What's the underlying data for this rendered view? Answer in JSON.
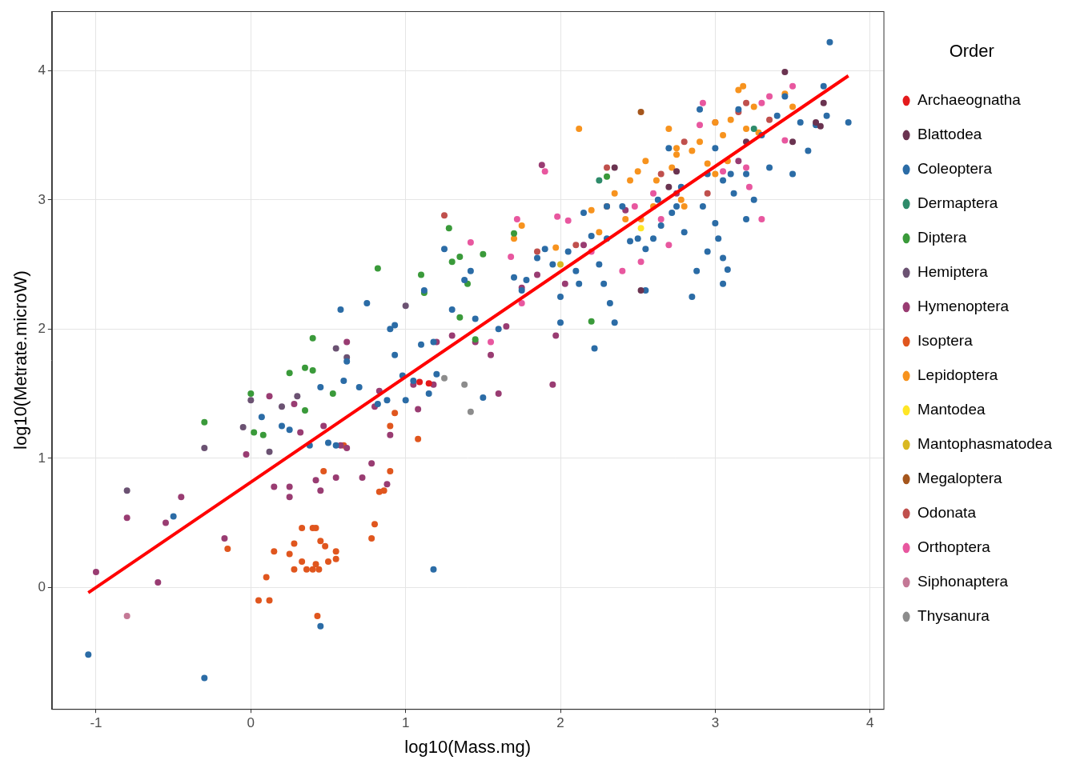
{
  "chart_data": {
    "type": "scatter",
    "x_label": "log10(Mass.mg)",
    "y_label": "log10(Metrate.microW)",
    "legend_title": "Order",
    "legend": "right",
    "grid": true,
    "marker": "circle",
    "xlim": [
      -1.285,
      4.087
    ],
    "ylim": [
      -0.94,
      4.46
    ],
    "xticks": [
      -1,
      0,
      1,
      2,
      3,
      4
    ],
    "yticks": [
      0,
      1,
      2,
      3,
      4
    ],
    "trend_line": {
      "color": "#ff0000",
      "line_style": "solid",
      "x": [
        -1.05,
        3.86
      ],
      "y": [
        -0.04,
        3.96
      ]
    },
    "series": [
      {
        "name": "Archaeognatha",
        "color": "#e41a1c",
        "x": [
          1.09,
          1.15
        ],
        "y": [
          1.59,
          1.58
        ]
      },
      {
        "name": "Blattodea",
        "color": "#6a3350",
        "x": [
          2.52,
          3.45,
          3.5,
          3.65,
          3.7,
          3.68,
          2.75,
          2.7,
          3.2,
          2.35
        ],
        "y": [
          2.3,
          3.99,
          3.45,
          3.6,
          3.75,
          3.57,
          3.22,
          3.1,
          3.45,
          3.25
        ]
      },
      {
        "name": "Coleoptera",
        "color": "#2b6ca6",
        "x": [
          -1.05,
          -0.3,
          -0.5,
          0.45,
          1.18,
          0.07,
          0.2,
          0.25,
          0.38,
          0.45,
          0.5,
          0.55,
          0.58,
          0.6,
          0.62,
          0.7,
          0.75,
          0.82,
          0.88,
          0.9,
          0.93,
          0.93,
          0.98,
          1.0,
          1.05,
          1.1,
          1.12,
          1.15,
          1.18,
          1.2,
          1.25,
          1.3,
          1.38,
          1.42,
          1.45,
          1.5,
          1.6,
          1.7,
          1.75,
          1.78,
          1.85,
          1.9,
          1.95,
          2.0,
          2.0,
          2.05,
          2.1,
          2.12,
          2.15,
          2.2,
          2.22,
          2.25,
          2.28,
          2.3,
          2.3,
          2.32,
          2.35,
          2.4,
          2.45,
          2.5,
          2.55,
          2.55,
          2.6,
          2.63,
          2.65,
          2.7,
          2.72,
          2.75,
          2.78,
          2.8,
          2.85,
          2.88,
          2.9,
          2.92,
          2.95,
          3.0,
          3.0,
          3.02,
          3.05,
          3.05,
          3.08,
          3.1,
          3.12,
          3.15,
          3.2,
          3.25,
          3.3,
          3.35,
          3.4,
          3.45,
          3.5,
          3.55,
          3.6,
          3.65,
          3.7,
          3.72,
          3.74,
          3.86,
          3.05,
          3.2,
          2.95
        ],
        "y": [
          -0.52,
          -0.7,
          0.55,
          -0.3,
          0.14,
          1.32,
          1.25,
          1.22,
          1.1,
          1.55,
          1.12,
          1.1,
          2.15,
          1.6,
          1.75,
          1.55,
          2.2,
          1.42,
          1.45,
          2.0,
          2.03,
          1.8,
          1.64,
          1.45,
          1.6,
          1.88,
          2.3,
          1.5,
          1.9,
          1.65,
          2.62,
          2.15,
          2.38,
          2.45,
          2.08,
          1.47,
          2.0,
          2.4,
          2.3,
          2.38,
          2.55,
          2.62,
          2.5,
          2.25,
          2.05,
          2.6,
          2.45,
          2.35,
          2.9,
          2.72,
          1.85,
          2.5,
          2.35,
          2.95,
          2.7,
          2.2,
          2.05,
          2.95,
          2.68,
          2.7,
          2.62,
          2.3,
          2.7,
          3.0,
          2.8,
          3.4,
          2.9,
          2.95,
          3.1,
          2.75,
          2.25,
          2.45,
          3.7,
          2.95,
          3.2,
          2.82,
          3.4,
          2.7,
          3.15,
          2.55,
          2.46,
          3.2,
          3.05,
          3.7,
          3.2,
          3.0,
          3.5,
          3.25,
          3.65,
          3.8,
          3.2,
          3.6,
          3.38,
          3.58,
          3.88,
          3.65,
          4.22,
          3.6,
          2.35,
          2.85,
          2.6
        ]
      },
      {
        "name": "Dermaptera",
        "color": "#2e8b6a",
        "x": [
          2.25,
          3.25
        ],
        "y": [
          3.15,
          3.55
        ]
      },
      {
        "name": "Diptera",
        "color": "#3a9a3a",
        "x": [
          -0.3,
          0.0,
          0.02,
          0.08,
          0.25,
          0.35,
          0.4,
          0.35,
          0.4,
          0.53,
          0.82,
          1.1,
          1.12,
          1.28,
          1.3,
          1.4,
          1.35,
          1.5,
          1.35,
          1.45,
          1.7,
          2.2,
          2.3
        ],
        "y": [
          1.28,
          1.5,
          1.2,
          1.18,
          1.66,
          1.7,
          1.68,
          1.37,
          1.93,
          1.5,
          2.47,
          2.42,
          2.28,
          2.78,
          2.52,
          2.35,
          2.56,
          2.58,
          2.09,
          1.92,
          2.74,
          2.06,
          3.18
        ]
      },
      {
        "name": "Hemiptera",
        "color": "#6b5272",
        "x": [
          -0.8,
          -0.3,
          -0.05,
          0.0,
          0.12,
          0.2,
          0.3,
          0.55,
          0.62,
          1.0
        ],
        "y": [
          0.75,
          1.08,
          1.24,
          1.45,
          1.05,
          1.4,
          1.48,
          1.85,
          1.78,
          2.18
        ]
      },
      {
        "name": "Hymenoptera",
        "color": "#993c72",
        "x": [
          -1.0,
          -0.8,
          -0.6,
          -0.55,
          -0.45,
          -0.17,
          -0.03,
          0.12,
          0.15,
          0.25,
          0.25,
          0.28,
          0.32,
          0.42,
          0.45,
          0.47,
          0.55,
          0.58,
          0.62,
          0.62,
          0.72,
          0.78,
          0.8,
          0.83,
          0.88,
          0.9,
          1.05,
          1.08,
          1.18,
          1.2,
          1.3,
          1.45,
          1.55,
          1.6,
          1.65,
          1.75,
          1.85,
          1.88,
          1.95,
          1.97,
          2.03,
          2.15,
          2.42,
          2.75,
          3.15
        ],
        "y": [
          0.12,
          0.54,
          0.04,
          0.5,
          0.7,
          0.38,
          1.03,
          1.48,
          0.78,
          0.78,
          0.7,
          1.42,
          1.2,
          0.83,
          0.75,
          1.25,
          0.85,
          1.1,
          1.08,
          1.9,
          0.85,
          0.96,
          1.4,
          1.52,
          0.8,
          1.18,
          1.57,
          1.38,
          1.57,
          1.9,
          1.95,
          1.9,
          1.8,
          1.5,
          2.02,
          2.32,
          2.42,
          3.27,
          1.57,
          1.95,
          2.35,
          2.65,
          2.92,
          3.05,
          3.3
        ]
      },
      {
        "name": "Isoptera",
        "color": "#e0561e",
        "x": [
          -0.15,
          0.05,
          0.1,
          0.12,
          0.15,
          0.25,
          0.28,
          0.28,
          0.33,
          0.33,
          0.36,
          0.4,
          0.42,
          0.42,
          0.4,
          0.43,
          0.44,
          0.45,
          0.47,
          0.48,
          0.5,
          0.55,
          0.55,
          0.6,
          0.78,
          0.8,
          0.83,
          0.86,
          0.9,
          0.9,
          0.93,
          1.08
        ],
        "y": [
          0.3,
          -0.1,
          0.08,
          -0.1,
          0.28,
          0.26,
          0.34,
          0.14,
          0.46,
          0.2,
          0.14,
          0.46,
          0.46,
          0.18,
          0.14,
          -0.22,
          0.14,
          0.36,
          0.9,
          0.32,
          0.2,
          0.28,
          0.22,
          1.1,
          0.38,
          0.49,
          0.74,
          0.75,
          0.9,
          1.25,
          1.35,
          1.15
        ]
      },
      {
        "name": "Lepidoptera",
        "color": "#f7931e",
        "x": [
          1.7,
          1.75,
          1.97,
          2.12,
          2.2,
          2.25,
          2.3,
          2.35,
          2.42,
          2.45,
          2.5,
          2.52,
          2.55,
          2.6,
          2.62,
          2.7,
          2.72,
          2.75,
          2.75,
          2.78,
          2.8,
          2.85,
          2.9,
          3.0,
          3.05,
          3.08,
          3.1,
          3.15,
          3.18,
          3.25,
          3.28,
          3.45,
          3.5,
          3.0,
          3.2,
          2.95
        ],
        "y": [
          2.7,
          2.8,
          2.63,
          3.55,
          2.92,
          2.75,
          2.95,
          3.05,
          2.85,
          3.15,
          3.22,
          2.85,
          3.3,
          2.95,
          3.15,
          3.55,
          3.25,
          3.4,
          3.35,
          3.0,
          2.95,
          3.38,
          3.45,
          3.6,
          3.5,
          3.3,
          3.62,
          3.85,
          3.88,
          3.72,
          3.52,
          3.82,
          3.72,
          3.2,
          3.55,
          3.28
        ]
      },
      {
        "name": "Mantodea",
        "color": "#ffe626",
        "x": [
          2.52
        ],
        "y": [
          2.78
        ]
      },
      {
        "name": "Mantophasmatodea",
        "color": "#d9b821",
        "x": [
          2.0
        ],
        "y": [
          2.5
        ]
      },
      {
        "name": "Megaloptera",
        "color": "#a5561c",
        "x": [
          2.52
        ],
        "y": [
          3.68
        ]
      },
      {
        "name": "Odonata",
        "color": "#c0504d",
        "x": [
          1.25,
          1.85,
          2.1,
          2.3,
          2.65,
          2.8,
          3.0,
          3.15,
          3.2,
          3.35,
          2.95
        ],
        "y": [
          2.88,
          2.6,
          2.65,
          3.25,
          3.2,
          3.45,
          3.6,
          3.68,
          3.75,
          3.62,
          3.05
        ]
      },
      {
        "name": "Orthoptera",
        "color": "#e8579f",
        "x": [
          1.42,
          1.55,
          1.68,
          1.72,
          1.9,
          1.98,
          2.05,
          2.2,
          2.3,
          2.48,
          2.52,
          2.6,
          2.65,
          2.7,
          2.9,
          2.92,
          3.05,
          3.2,
          3.22,
          3.3,
          3.35,
          3.3,
          3.45,
          3.5,
          2.4,
          1.75
        ],
        "y": [
          2.67,
          1.9,
          2.56,
          2.85,
          3.22,
          2.87,
          2.84,
          2.6,
          2.95,
          2.95,
          2.52,
          3.05,
          2.85,
          2.65,
          3.58,
          3.75,
          3.22,
          3.25,
          3.1,
          3.75,
          3.8,
          2.85,
          3.46,
          3.88,
          2.45,
          2.2
        ]
      },
      {
        "name": "Siphonaptera",
        "color": "#c47896",
        "x": [
          -0.8
        ],
        "y": [
          -0.22
        ]
      },
      {
        "name": "Thysanura",
        "color": "#8c8c8c",
        "x": [
          1.25,
          1.38,
          1.42
        ],
        "y": [
          1.62,
          1.57,
          1.36
        ]
      }
    ]
  }
}
